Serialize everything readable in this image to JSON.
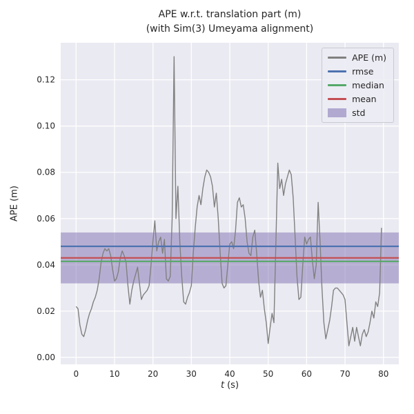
{
  "figure": {
    "title_line1": "APE w.r.t. translation part (m)",
    "title_line2": "(with Sim(3) Umeyama alignment)",
    "xlabel_symbol": "t",
    "xlabel_unit": "(s)",
    "ylabel": "APE (m)"
  },
  "colors": {
    "axes_bg": "#EAEAF2",
    "grid": "#FFFFFF",
    "text": "#262626",
    "ape_line": "#808080",
    "rmse": "#4C72B0",
    "median": "#55A868",
    "mean": "#C44E52",
    "std_band": "#8172B2"
  },
  "legend": {
    "items": [
      {
        "label": "APE (m)",
        "color": "#808080",
        "kind": "line"
      },
      {
        "label": "rmse",
        "color": "#4C72B0",
        "kind": "line"
      },
      {
        "label": "median",
        "color": "#55A868",
        "kind": "line"
      },
      {
        "label": "mean",
        "color": "#C44E52",
        "kind": "line"
      },
      {
        "label": "std",
        "color": "#8172B2",
        "kind": "band"
      }
    ]
  },
  "chart_data": {
    "type": "line",
    "title": "APE w.r.t. translation part (m) (with Sim(3) Umeyama alignment)",
    "xlabel": "t (s)",
    "ylabel": "APE (m)",
    "xlim": [
      -4,
      84
    ],
    "ylim": [
      -0.003,
      0.136
    ],
    "xticks": [
      0,
      10,
      20,
      30,
      40,
      50,
      60,
      70,
      80
    ],
    "yticks": [
      0.0,
      0.02,
      0.04,
      0.06,
      0.08,
      0.1,
      0.12
    ],
    "ytick_labels": [
      "0.00",
      "0.02",
      "0.04",
      "0.06",
      "0.08",
      "0.10",
      "0.12"
    ],
    "grid": true,
    "legend_position": "upper right",
    "stats": {
      "rmse": 0.048,
      "mean": 0.043,
      "median": 0.0415,
      "std": 0.011
    },
    "std_band": [
      0.032,
      0.054
    ],
    "series": [
      {
        "name": "APE (m)",
        "x_start": 0,
        "x_step": 0.5,
        "y": [
          0.022,
          0.021,
          0.014,
          0.01,
          0.009,
          0.012,
          0.016,
          0.019,
          0.021,
          0.024,
          0.026,
          0.029,
          0.034,
          0.041,
          0.045,
          0.047,
          0.046,
          0.047,
          0.044,
          0.038,
          0.033,
          0.034,
          0.037,
          0.043,
          0.046,
          0.044,
          0.041,
          0.031,
          0.023,
          0.029,
          0.033,
          0.036,
          0.039,
          0.032,
          0.025,
          0.027,
          0.028,
          0.029,
          0.031,
          0.04,
          0.05,
          0.059,
          0.046,
          0.05,
          0.052,
          0.045,
          0.051,
          0.034,
          0.033,
          0.035,
          0.06,
          0.13,
          0.06,
          0.074,
          0.05,
          0.035,
          0.024,
          0.023,
          0.026,
          0.028,
          0.031,
          0.045,
          0.056,
          0.065,
          0.07,
          0.066,
          0.073,
          0.078,
          0.081,
          0.08,
          0.078,
          0.074,
          0.065,
          0.071,
          0.06,
          0.045,
          0.032,
          0.03,
          0.031,
          0.04,
          0.049,
          0.05,
          0.047,
          0.055,
          0.067,
          0.069,
          0.065,
          0.066,
          0.06,
          0.05,
          0.045,
          0.044,
          0.052,
          0.055,
          0.045,
          0.033,
          0.026,
          0.029,
          0.021,
          0.015,
          0.006,
          0.013,
          0.019,
          0.015,
          0.049,
          0.084,
          0.073,
          0.077,
          0.07,
          0.075,
          0.078,
          0.081,
          0.079,
          0.069,
          0.052,
          0.035,
          0.025,
          0.026,
          0.04,
          0.052,
          0.049,
          0.051,
          0.052,
          0.042,
          0.034,
          0.04,
          0.067,
          0.05,
          0.03,
          0.015,
          0.008,
          0.012,
          0.016,
          0.022,
          0.029,
          0.03,
          0.03,
          0.029,
          0.028,
          0.027,
          0.025,
          0.015,
          0.005,
          0.009,
          0.013,
          0.007,
          0.013,
          0.009,
          0.005,
          0.01,
          0.012,
          0.009,
          0.011,
          0.015,
          0.02,
          0.017,
          0.024,
          0.022,
          0.028,
          0.056
        ]
      },
      {
        "name": "rmse",
        "kind": "hline",
        "value": 0.048
      },
      {
        "name": "median",
        "kind": "hline",
        "value": 0.0415
      },
      {
        "name": "mean",
        "kind": "hline",
        "value": 0.043
      },
      {
        "name": "std",
        "kind": "band",
        "band": [
          0.032,
          0.054
        ]
      }
    ]
  }
}
